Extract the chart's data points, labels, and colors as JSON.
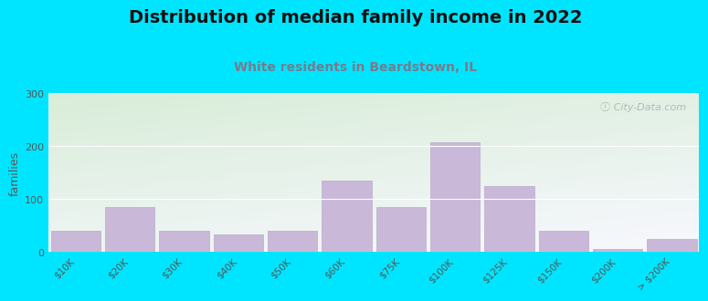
{
  "title": "Distribution of median family income in 2022",
  "subtitle": "White residents in Beardstown, IL",
  "ylabel": "families",
  "categories": [
    "$10K",
    "$20K",
    "$30K",
    "$40K",
    "$50K",
    "$60K",
    "$75K",
    "$100K",
    "$125K",
    "$150K",
    "$200K",
    "> $200K"
  ],
  "values": [
    40,
    85,
    40,
    33,
    40,
    135,
    85,
    207,
    125,
    40,
    5,
    25
  ],
  "bar_color": "#c9b8d8",
  "bar_edge_color": "#bbaacb",
  "background_outer": "#00e5ff",
  "plot_bg_top_left": "#d8edd8",
  "plot_bg_bottom_right": "#f8f8ff",
  "title_fontsize": 14,
  "subtitle_fontsize": 10,
  "subtitle_color": "#7a7a8a",
  "ylabel_fontsize": 9,
  "tick_fontsize": 7.5,
  "ylim": [
    0,
    300
  ],
  "yticks": [
    0,
    100,
    200,
    300
  ],
  "watermark": "ⓘ City-Data.com"
}
